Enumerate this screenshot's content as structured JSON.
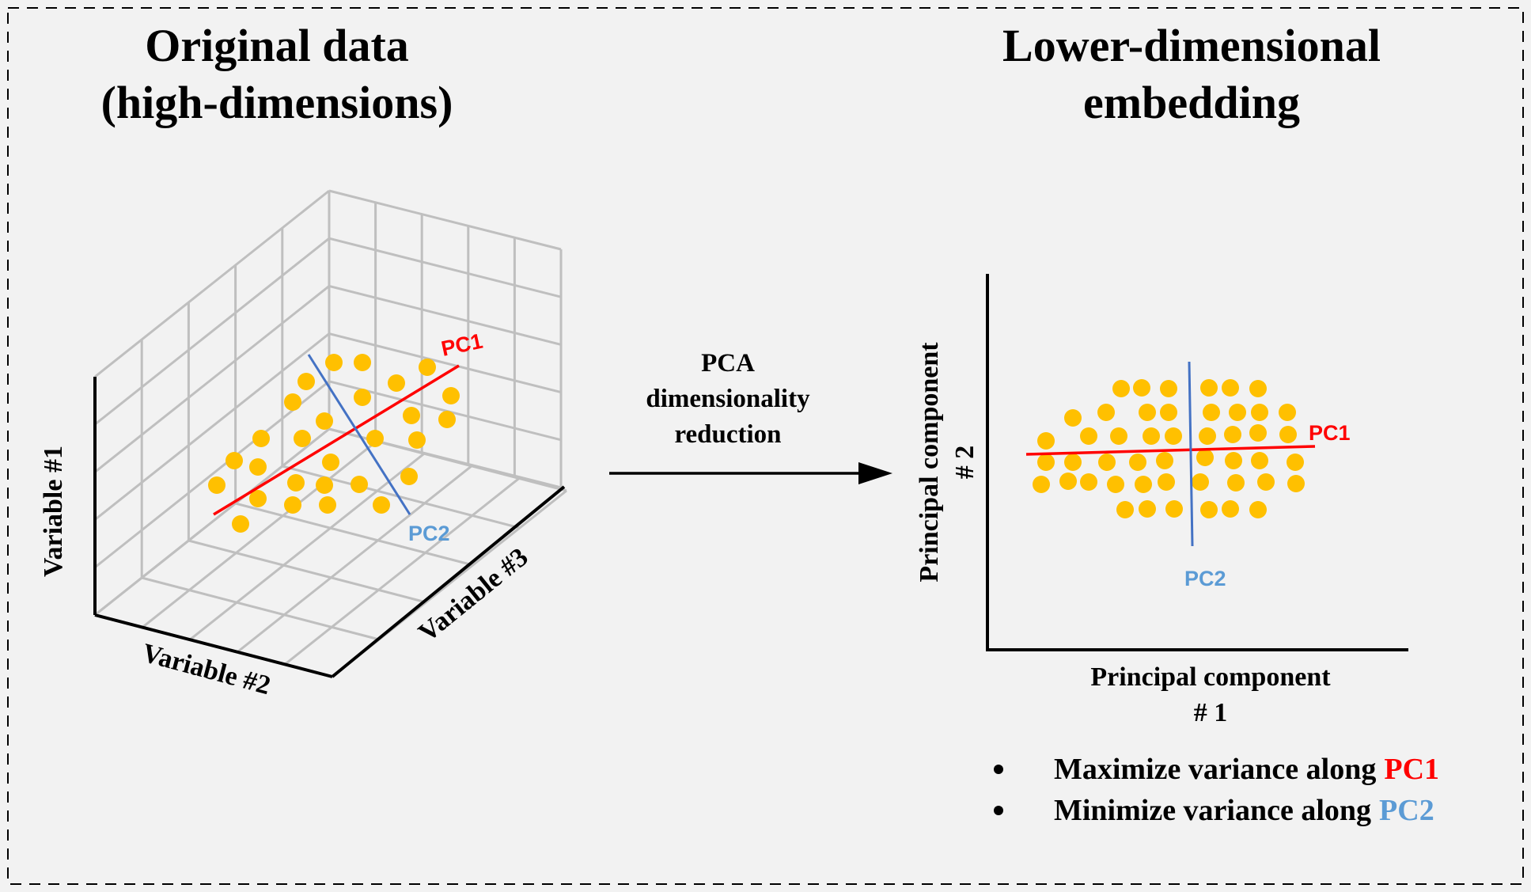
{
  "left": {
    "title_line1": "Original data",
    "title_line2": "(high-dimensions)",
    "axis_labels": {
      "x": "Variable #2",
      "y": "Variable #1",
      "z": "Variable #3"
    },
    "pc1_label": "PC1",
    "pc2_label": "PC2"
  },
  "middle": {
    "line1": "PCA",
    "line2": "dimensionality",
    "line3": "reduction"
  },
  "right": {
    "title_line1": "Lower-dimensional",
    "title_line2": "embedding",
    "x_axis_line1": "Principal component",
    "x_axis_line2": "# 1",
    "y_axis_line1": "Principal component",
    "y_axis_line2": "# 2",
    "pc1_label": "PC1",
    "pc2_label": "PC2"
  },
  "bullets": [
    {
      "text": "Maximize variance along",
      "highlight": "PC1",
      "color": "#ff0000"
    },
    {
      "text": "Minimize variance along",
      "highlight": "PC2",
      "color": "#5b9bd5"
    }
  ],
  "colors": {
    "point": "#ffc000",
    "pc1": "#ff0000",
    "pc2": "#4472c4",
    "pc2_label": "#5b9bd5",
    "grid": "#bfbfbf",
    "axis": "#000000"
  }
}
